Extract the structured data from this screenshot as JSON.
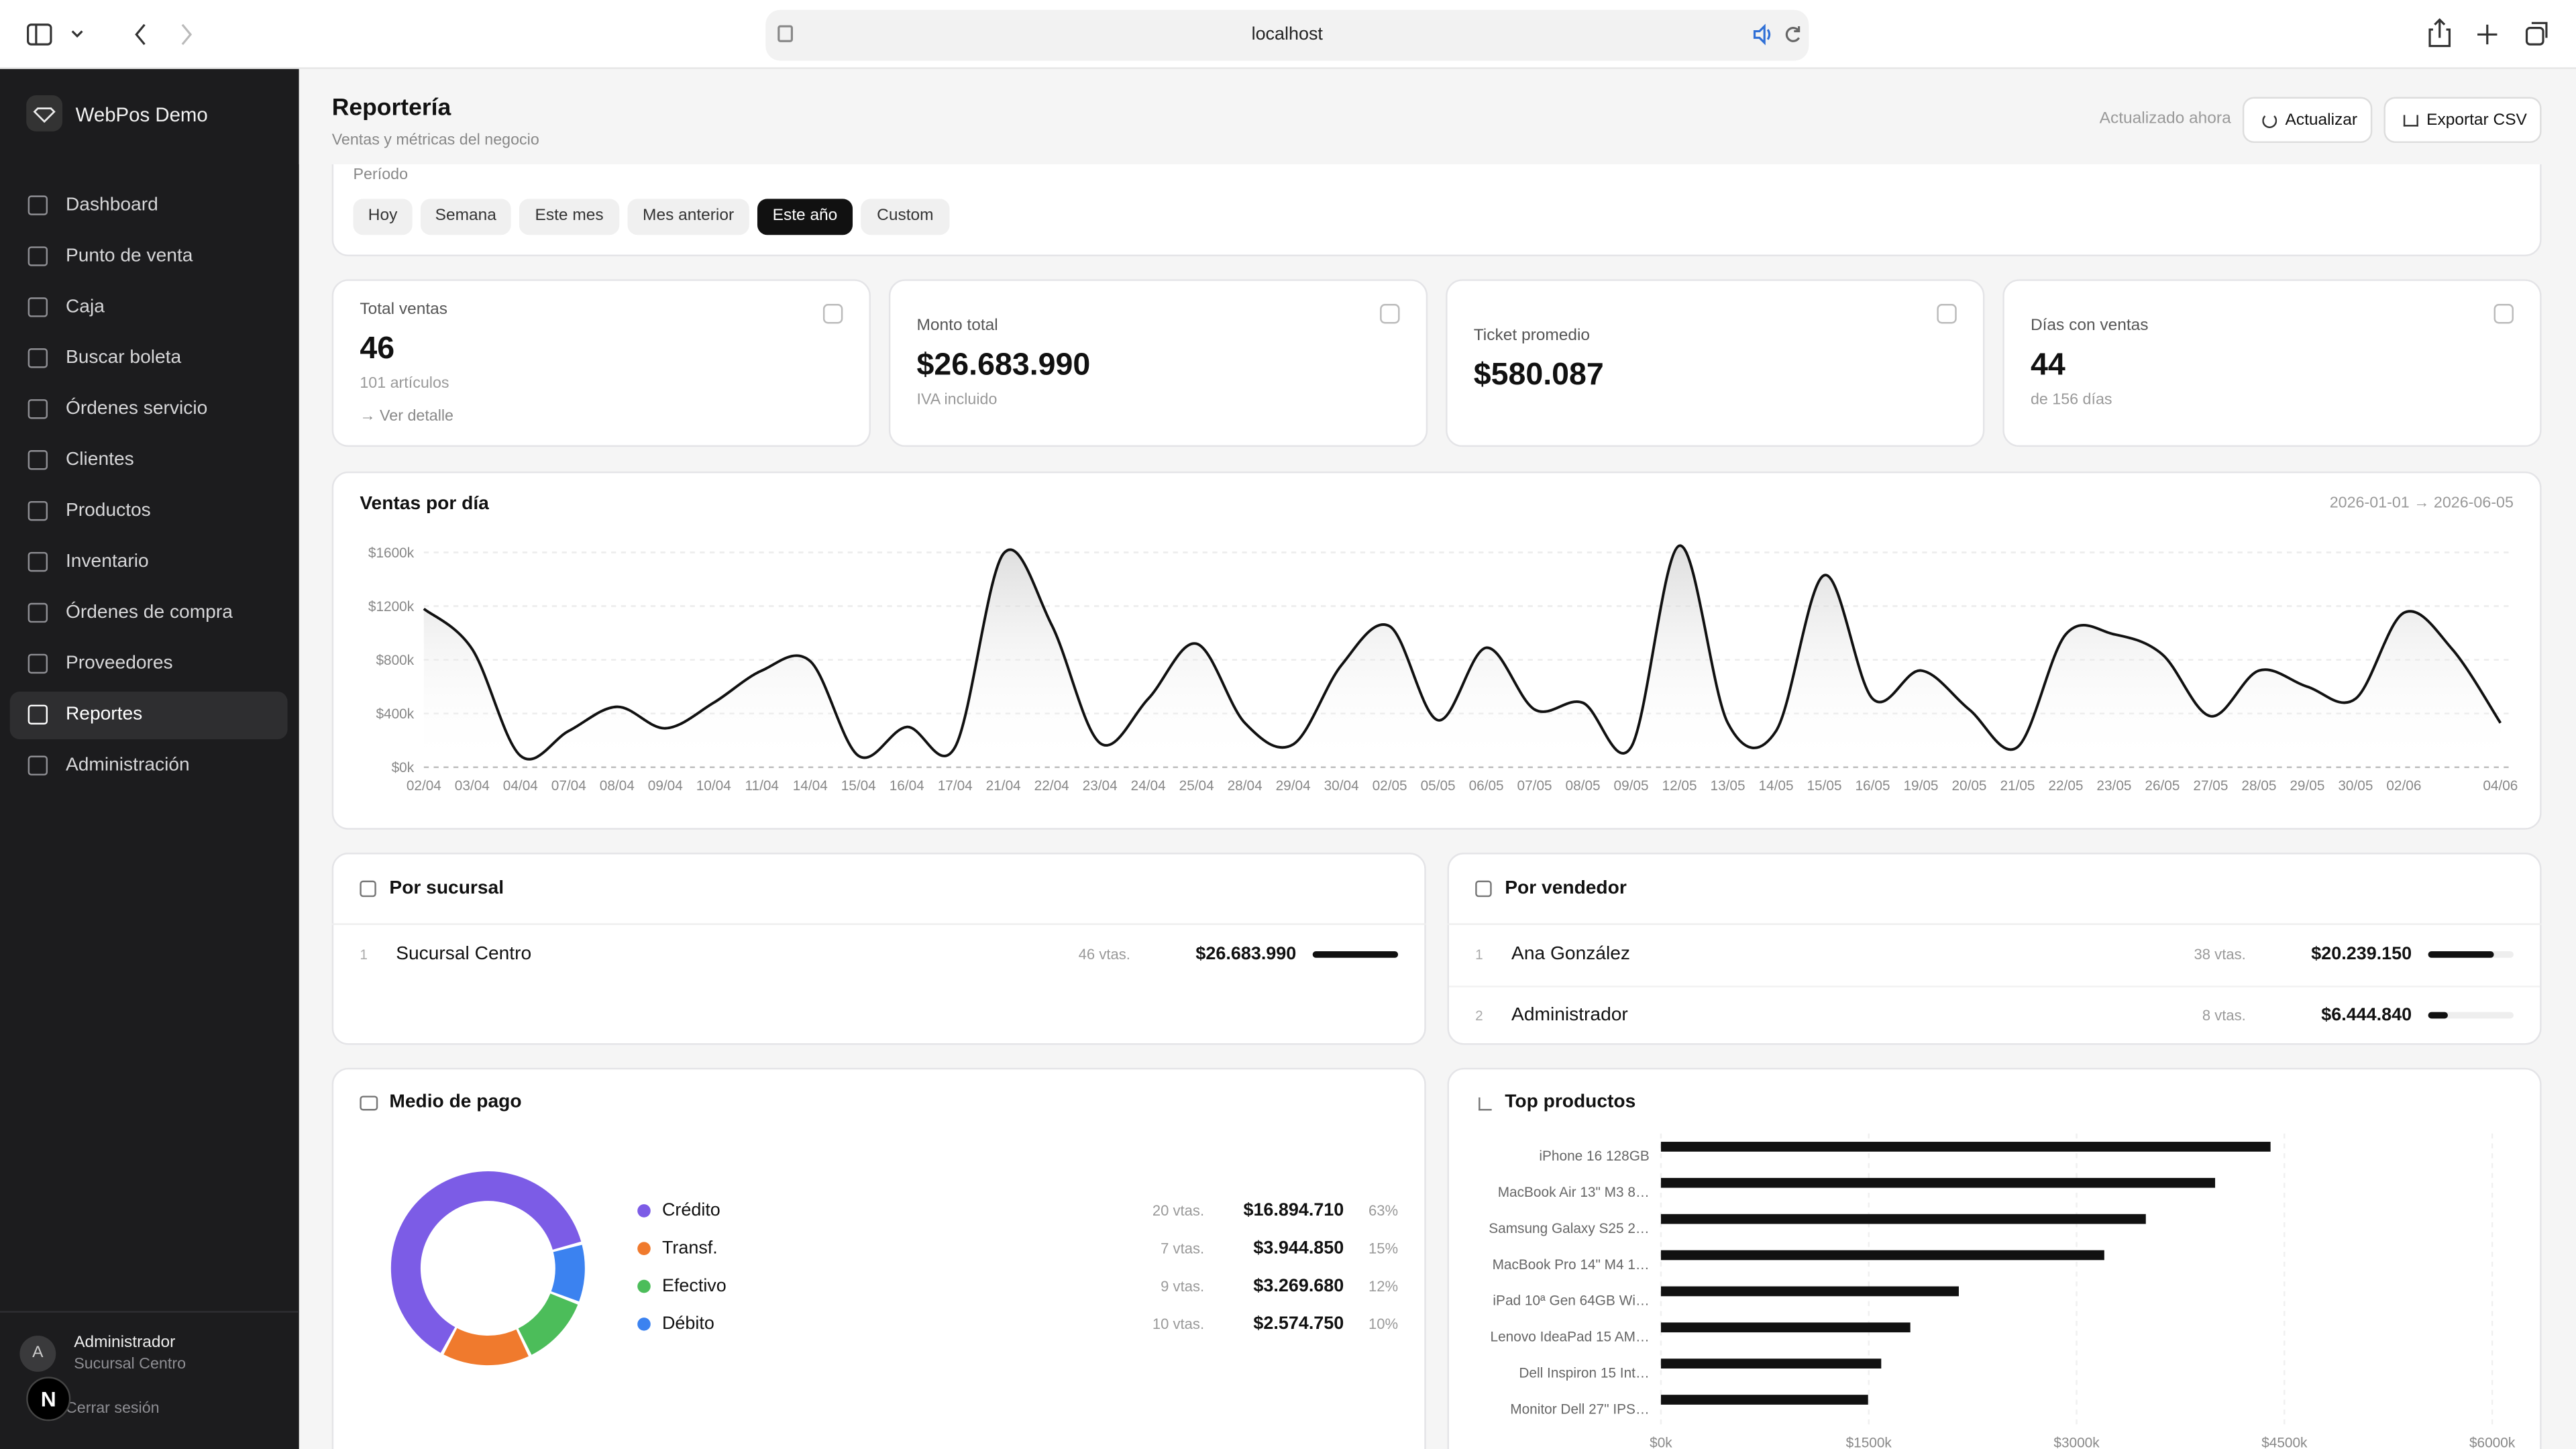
{
  "browser": {
    "url": "localhost"
  },
  "sidebar": {
    "brand": "WebPos Demo",
    "nav": [
      "Dashboard",
      "Punto de venta",
      "Caja",
      "Buscar boleta",
      "Órdenes servicio",
      "Clientes",
      "Productos",
      "Inventario",
      "Órdenes de compra",
      "Proveedores",
      "Reportes",
      "Administración"
    ],
    "active": 10,
    "user": {
      "initial": "A",
      "name": "Administrador",
      "branch": "Sucursal Centro"
    },
    "logout": "Cerrar sesión",
    "dev_badge": "N"
  },
  "header": {
    "title": "Reportería",
    "subtitle": "Ventas y métricas del negocio",
    "updated": "Actualizado ahora",
    "refresh": "Actualizar",
    "export": "Exportar CSV"
  },
  "period": {
    "label": "Período",
    "options": [
      "Hoy",
      "Semana",
      "Este mes",
      "Mes anterior",
      "Este año",
      "Custom"
    ],
    "active": 4
  },
  "kpis": [
    {
      "label": "Total ventas",
      "value": "46",
      "note": "101 artículos",
      "link": "→ Ver detalle"
    },
    {
      "label": "Monto total",
      "value": "$26.683.990",
      "note": "IVA incluido"
    },
    {
      "label": "Ticket promedio",
      "value": "$580.087"
    },
    {
      "label": "Días con ventas",
      "value": "44",
      "note": "de 156 días"
    }
  ],
  "sales_chart": {
    "type": "line",
    "title": "Ventas por día",
    "subtitle": "2026-01-01 → 2026-06-05",
    "x": [
      "02/04",
      "03/04",
      "04/04",
      "07/04",
      "08/04",
      "09/04",
      "10/04",
      "11/04",
      "14/04",
      "15/04",
      "16/04",
      "17/04",
      "21/04",
      "22/04",
      "23/04",
      "24/04",
      "25/04",
      "28/04",
      "29/04",
      "30/04",
      "02/05",
      "05/05",
      "06/05",
      "07/05",
      "08/05",
      "09/05",
      "12/05",
      "13/05",
      "14/05",
      "15/05",
      "16/05",
      "19/05",
      "20/05",
      "21/05",
      "22/05",
      "23/05",
      "26/05",
      "27/05",
      "28/05",
      "29/05",
      "30/05",
      "02/06",
      null,
      "04/06"
    ],
    "values": [
      1180,
      880,
      85,
      270,
      450,
      290,
      480,
      720,
      790,
      85,
      300,
      150,
      1590,
      1060,
      180,
      510,
      920,
      330,
      170,
      760,
      1050,
      350,
      890,
      430,
      480,
      150,
      1650,
      330,
      270,
      1430,
      510,
      720,
      430,
      150,
      990,
      990,
      840,
      380,
      720,
      600,
      510,
      1150,
      880,
      330
    ],
    "ylim": [
      0,
      1750
    ],
    "yticks": [
      {
        "value": 0,
        "label": "$0k"
      },
      {
        "value": 400,
        "label": "$400k"
      },
      {
        "value": 800,
        "label": "$800k"
      },
      {
        "value": 1200,
        "label": "$1200k"
      },
      {
        "value": 1600,
        "label": "$1600k"
      }
    ],
    "color": "#111111",
    "grid": true
  },
  "by_branch": {
    "title": "Por sucursal",
    "rows": [
      {
        "rank": "1",
        "name": "Sucursal Centro",
        "count": "46 vtas.",
        "amount": "$26.683.990",
        "share": 100
      }
    ]
  },
  "by_seller": {
    "title": "Por vendedor",
    "rows": [
      {
        "rank": "1",
        "name": "Ana González",
        "count": "38 vtas.",
        "amount": "$20.239.150",
        "share": 76
      },
      {
        "rank": "2",
        "name": "Administrador",
        "count": "8 vtas.",
        "amount": "$6.444.840",
        "share": 24
      }
    ]
  },
  "payment": {
    "title": "Medio de pago",
    "type": "donut",
    "rows": [
      {
        "name": "Crédito",
        "color": "#7c5ce6",
        "count": "20 vtas.",
        "amount": "$16.894.710",
        "share": 63,
        "share_label": "63%"
      },
      {
        "name": "Transf.",
        "color": "#f07a2d",
        "count": "7 vtas.",
        "amount": "$3.944.850",
        "share": 15,
        "share_label": "15%"
      },
      {
        "name": "Efectivo",
        "color": "#4cbd5a",
        "count": "9 vtas.",
        "amount": "$3.269.680",
        "share": 12,
        "share_label": "12%"
      },
      {
        "name": "Débito",
        "color": "#3b82f0",
        "count": "10 vtas.",
        "amount": "$2.574.750",
        "share": 10,
        "share_label": "10%"
      }
    ]
  },
  "top_products": {
    "type": "bar",
    "title": "Top productos",
    "categories": [
      "iPhone 16 128GB",
      "MacBook Air 13\" M3 8…",
      "Samsung Galaxy S25 2…",
      "MacBook Pro 14\" M4 1…",
      "iPad 10ª Gen 64GB Wi…",
      "Lenovo IdeaPad 15 AM…",
      "Dell Inspiron 15 Int…",
      "Monitor Dell 27\" IPS…"
    ],
    "values": [
      4400,
      4000,
      3500,
      3200,
      2150,
      1800,
      1590,
      1495
    ],
    "xlim": [
      0,
      6000
    ],
    "xticks": [
      {
        "value": 0,
        "label": "$0k"
      },
      {
        "value": 1500,
        "label": "$1500k"
      },
      {
        "value": 3000,
        "label": "$3000k"
      },
      {
        "value": 4500,
        "label": "$4500k"
      },
      {
        "value": 6000,
        "label": "$6000k"
      }
    ],
    "color": "#111111"
  }
}
